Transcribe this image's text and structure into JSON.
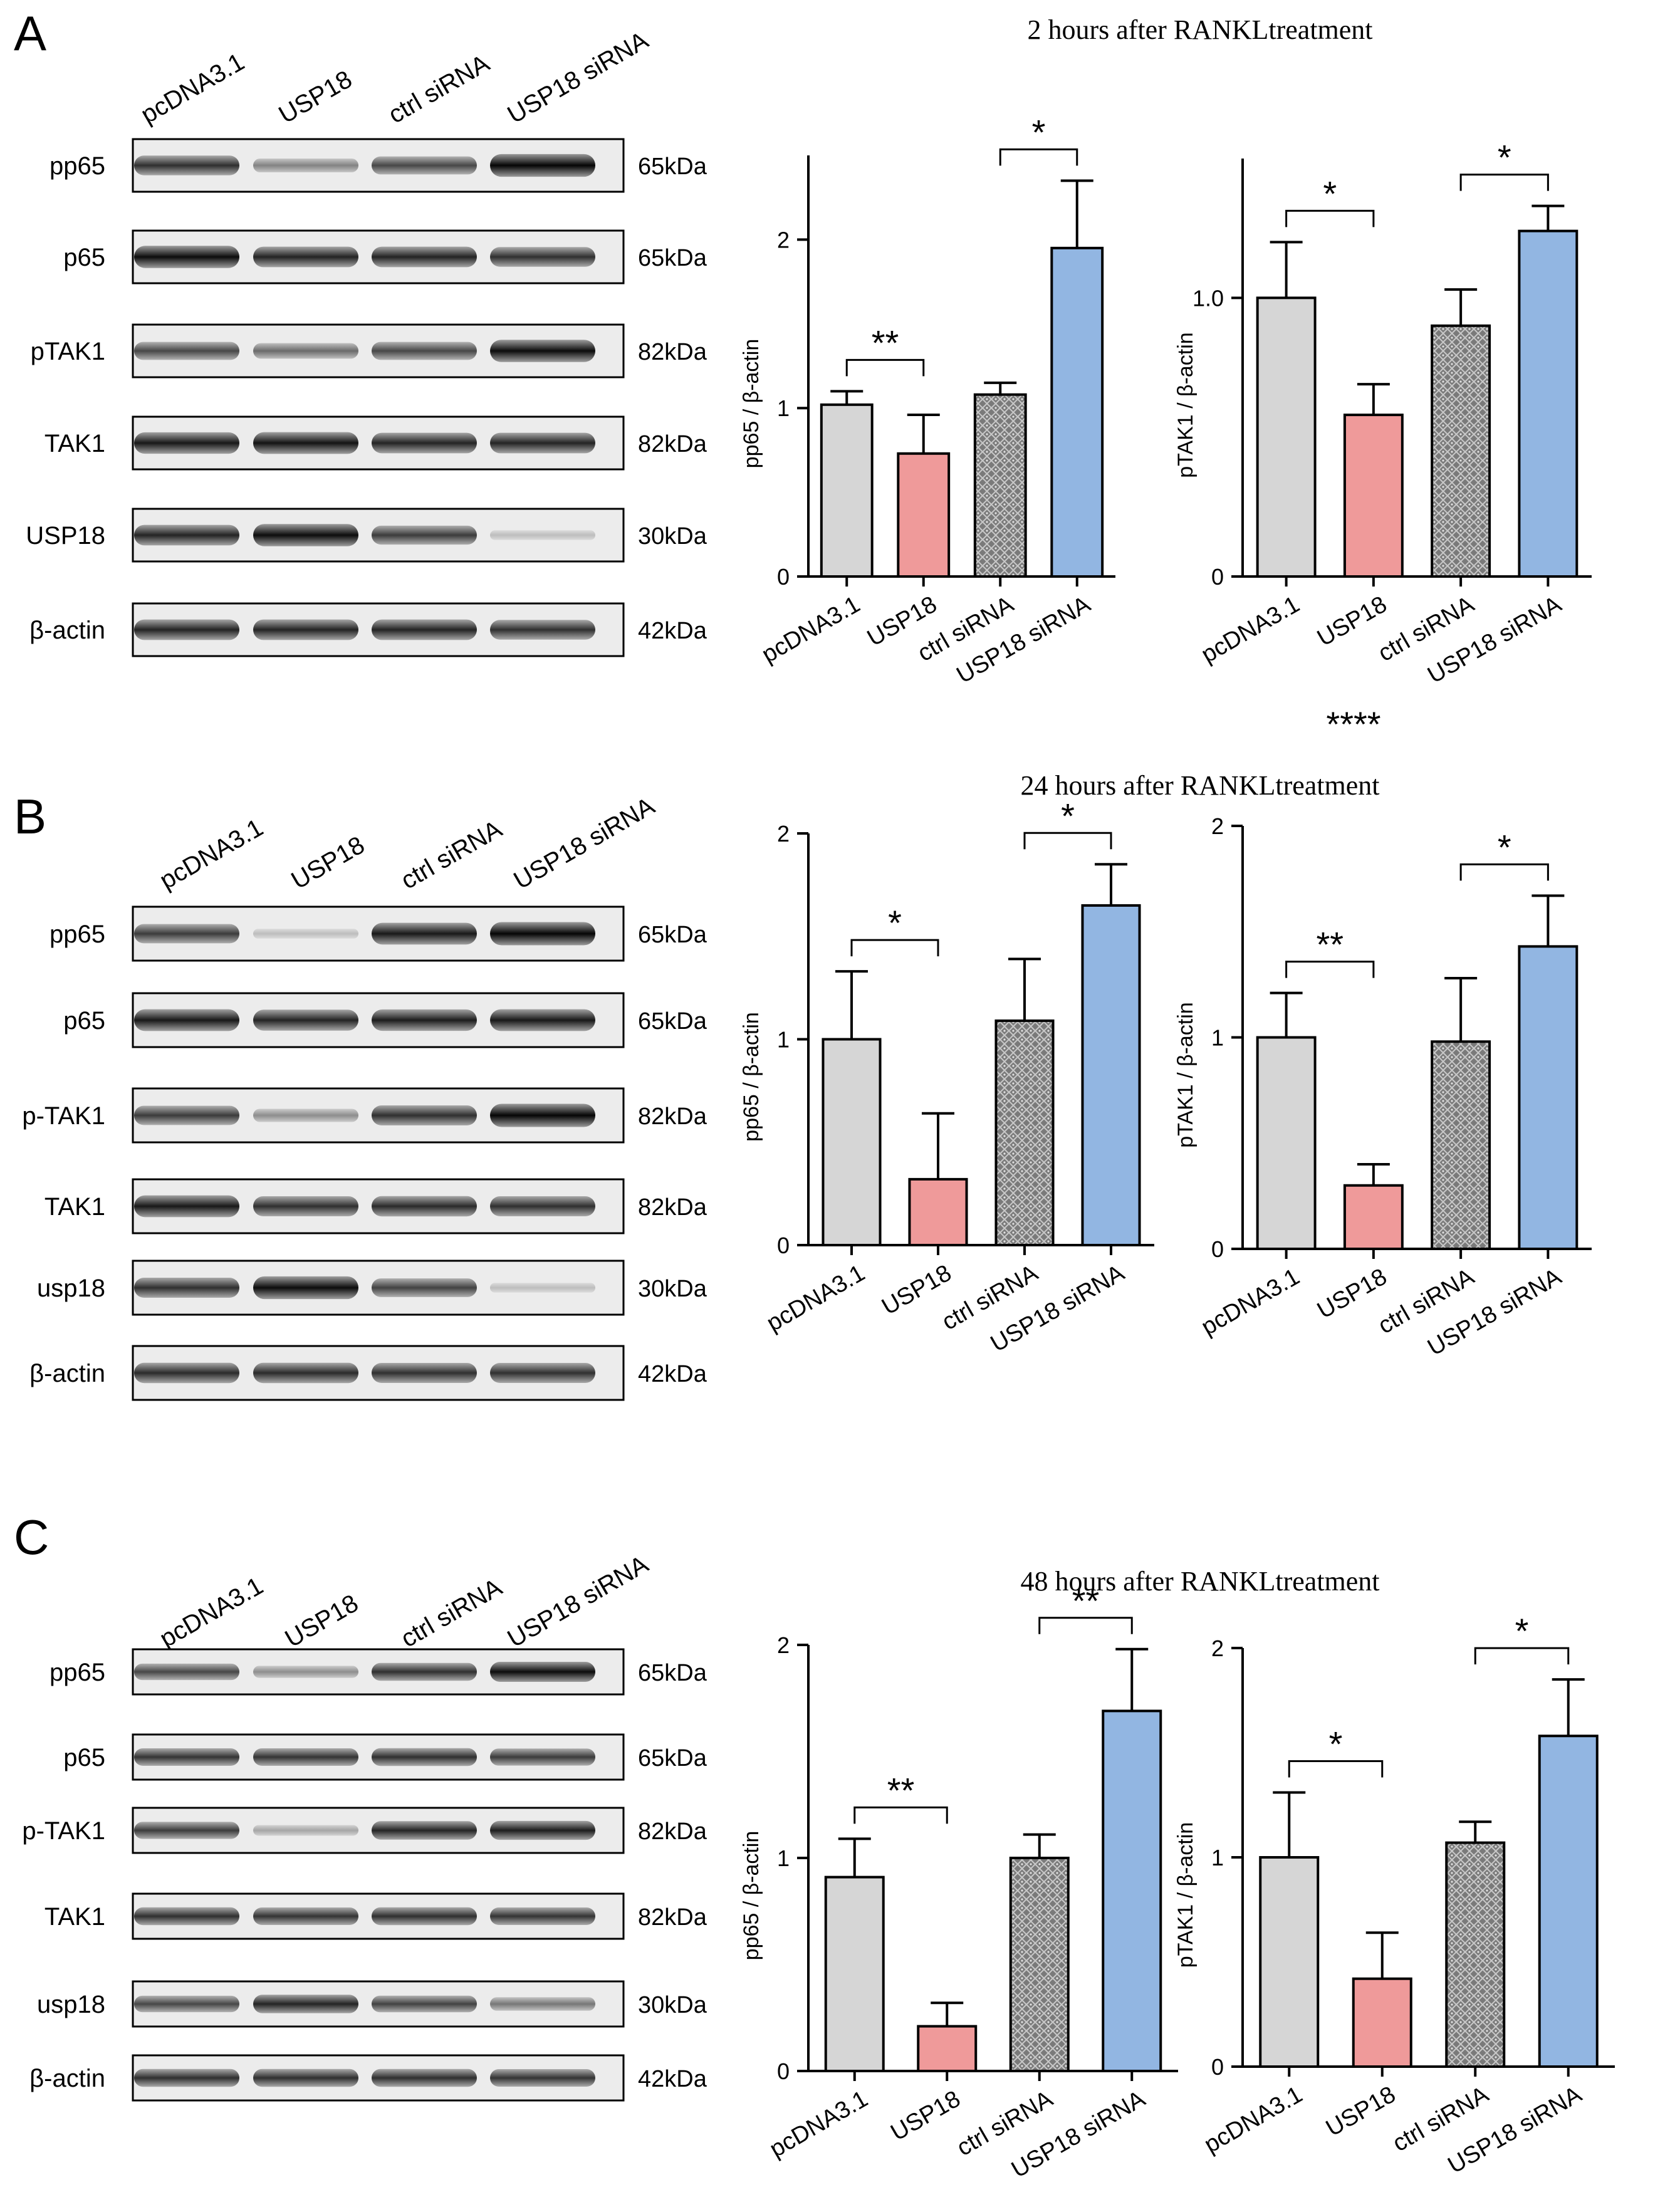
{
  "colors": {
    "gray": "#d6d6d6",
    "red": "#ef9a9a",
    "pattern": "#6e6e6e",
    "blue": "#92b6e2"
  },
  "lanes": [
    "pcDNA3.1",
    "USP18",
    "ctrl siRNA",
    "USP18 siRNA"
  ],
  "extra_mark": "****",
  "panels": [
    {
      "letter": "A",
      "title": "2 hours after RANKLtreatment",
      "blots": [
        {
          "label": "pp65",
          "kda": "65kDa",
          "intensity": [
            0.8,
            0.45,
            0.7,
            0.98
          ]
        },
        {
          "label": "p65",
          "kda": "65kDa",
          "intensity": [
            0.95,
            0.85,
            0.85,
            0.8
          ]
        },
        {
          "label": "pTAK1",
          "kda": "82kDa",
          "intensity": [
            0.7,
            0.55,
            0.7,
            0.95
          ]
        },
        {
          "label": "TAK1",
          "kda": "82kDa",
          "intensity": [
            0.9,
            0.92,
            0.85,
            0.85
          ]
        },
        {
          "label": "USP18",
          "kda": "30kDa",
          "intensity": [
            0.85,
            0.95,
            0.75,
            0.2
          ]
        },
        {
          "label": "β-actin",
          "kda": "42kDa",
          "intensity": [
            0.85,
            0.85,
            0.85,
            0.8
          ]
        }
      ]
    },
    {
      "letter": "B",
      "title": "24 hours after RANKLtreatment",
      "blots": [
        {
          "label": "pp65",
          "kda": "65kDa",
          "intensity": [
            0.75,
            0.2,
            0.9,
            0.98
          ]
        },
        {
          "label": "p65",
          "kda": "65kDa",
          "intensity": [
            0.9,
            0.85,
            0.88,
            0.9
          ]
        },
        {
          "label": "p-TAK1",
          "kda": "82kDa",
          "intensity": [
            0.75,
            0.4,
            0.8,
            0.98
          ]
        },
        {
          "label": "TAK1",
          "kda": "82kDa",
          "intensity": [
            0.9,
            0.8,
            0.82,
            0.8
          ]
        },
        {
          "label": "usp18",
          "kda": "30kDa",
          "intensity": [
            0.8,
            0.95,
            0.72,
            0.2
          ]
        },
        {
          "label": "β-actin",
          "kda": "42kDa",
          "intensity": [
            0.82,
            0.82,
            0.8,
            0.8
          ]
        }
      ]
    },
    {
      "letter": "C",
      "title": "48 hours after RANKLtreatment",
      "blots": [
        {
          "label": "pp65",
          "kda": "65kDa",
          "intensity": [
            0.7,
            0.4,
            0.8,
            0.95
          ]
        },
        {
          "label": "p65",
          "kda": "65kDa",
          "intensity": [
            0.78,
            0.78,
            0.8,
            0.75
          ]
        },
        {
          "label": "p-TAK1",
          "kda": "82kDa",
          "intensity": [
            0.75,
            0.3,
            0.85,
            0.88
          ]
        },
        {
          "label": "TAK1",
          "kda": "82kDa",
          "intensity": [
            0.8,
            0.78,
            0.8,
            0.78
          ]
        },
        {
          "label": "usp18",
          "kda": "30kDa",
          "intensity": [
            0.7,
            0.85,
            0.72,
            0.5
          ]
        },
        {
          "label": "β-actin",
          "kda": "42kDa",
          "intensity": [
            0.8,
            0.8,
            0.8,
            0.78
          ]
        }
      ]
    }
  ],
  "chart_data": [
    {
      "panel": "A",
      "type": "bar",
      "ylabel": "pp65 / β-actin",
      "categories": [
        "pcDNA3.1",
        "USP18",
        "ctrl siRNA",
        "USP18 siRNA"
      ],
      "values": [
        1.02,
        0.73,
        1.08,
        1.95
      ],
      "errors": [
        0.08,
        0.23,
        0.07,
        0.4
      ],
      "ylim": [
        0,
        2.5
      ],
      "yticks": [
        0,
        1,
        2
      ],
      "comparisons": [
        {
          "from": 0,
          "to": 1,
          "label": "**"
        },
        {
          "from": 2,
          "to": 3,
          "label": "*"
        }
      ]
    },
    {
      "panel": "A",
      "type": "bar",
      "ylabel": "pTAK1 / β-actin",
      "categories": [
        "pcDNA3.1",
        "USP18",
        "ctrl siRNA",
        "USP18 siRNA"
      ],
      "values": [
        1.0,
        0.58,
        0.9,
        1.24
      ],
      "errors": [
        0.2,
        0.11,
        0.13,
        0.09
      ],
      "ylim": [
        0,
        1.5
      ],
      "yticks": [
        0,
        1.0
      ],
      "comparisons": [
        {
          "from": 0,
          "to": 1,
          "label": "*"
        },
        {
          "from": 2,
          "to": 3,
          "label": "*"
        }
      ]
    },
    {
      "panel": "B",
      "type": "bar",
      "ylabel": "pp65 / β-actin",
      "categories": [
        "pcDNA3.1",
        "USP18",
        "ctrl siRNA",
        "USP18 siRNA"
      ],
      "values": [
        1.0,
        0.32,
        1.09,
        1.65
      ],
      "errors": [
        0.33,
        0.32,
        0.3,
        0.2
      ],
      "ylim": [
        0,
        2.0
      ],
      "yticks": [
        0,
        1,
        2
      ],
      "comparisons": [
        {
          "from": 0,
          "to": 1,
          "label": "*"
        },
        {
          "from": 2,
          "to": 3,
          "label": "*"
        }
      ]
    },
    {
      "panel": "B",
      "type": "bar",
      "ylabel": "pTAK1 / β-actin",
      "categories": [
        "pcDNA3.1",
        "USP18",
        "ctrl siRNA",
        "USP18 siRNA"
      ],
      "values": [
        1.0,
        0.3,
        0.98,
        1.43
      ],
      "errors": [
        0.21,
        0.1,
        0.3,
        0.24
      ],
      "ylim": [
        0,
        2.0
      ],
      "yticks": [
        0,
        1,
        2
      ],
      "comparisons": [
        {
          "from": 0,
          "to": 1,
          "label": "**"
        },
        {
          "from": 2,
          "to": 3,
          "label": "*"
        }
      ]
    },
    {
      "panel": "C",
      "type": "bar",
      "ylabel": "pp65 / β-actin",
      "categories": [
        "pcDNA3.1",
        "USP18",
        "ctrl siRNA",
        "USP18 siRNA"
      ],
      "values": [
        0.91,
        0.21,
        1.0,
        1.69
      ],
      "errors": [
        0.18,
        0.11,
        0.11,
        0.29
      ],
      "ylim": [
        0,
        2.0
      ],
      "yticks": [
        0,
        1,
        2
      ],
      "comparisons": [
        {
          "from": 0,
          "to": 1,
          "label": "**"
        },
        {
          "from": 2,
          "to": 3,
          "label": "**"
        }
      ]
    },
    {
      "panel": "C",
      "type": "bar",
      "ylabel": "pTAK1 / β-actin",
      "categories": [
        "pcDNA3.1",
        "USP18",
        "ctrl siRNA",
        "USP18 siRNA"
      ],
      "values": [
        1.0,
        0.42,
        1.07,
        1.58
      ],
      "errors": [
        0.31,
        0.22,
        0.1,
        0.27
      ],
      "ylim": [
        0,
        2.0
      ],
      "yticks": [
        0,
        1,
        2
      ],
      "comparisons": [
        {
          "from": 0,
          "to": 1,
          "label": "*"
        },
        {
          "from": 2,
          "to": 3,
          "label": "*"
        }
      ]
    }
  ]
}
